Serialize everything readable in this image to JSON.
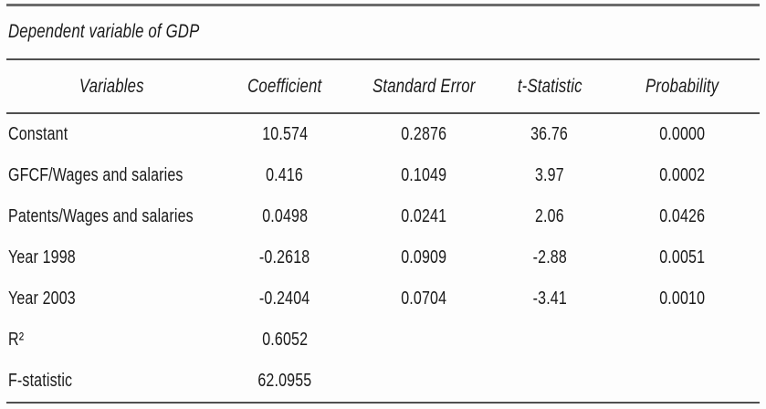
{
  "table": {
    "title": "Dependent variable of GDP",
    "columns": [
      "Variables",
      "Coefficient",
      "Standard Error",
      "t-Statistic",
      "Probability"
    ],
    "rows": [
      {
        "variable": "Constant",
        "coefficient": "10.574",
        "std_error": "0.2876",
        "t_stat": "36.76",
        "probability": "0.0000"
      },
      {
        "variable": "GFCF/Wages and salaries",
        "coefficient": "0.416",
        "std_error": "0.1049",
        "t_stat": "3.97",
        "probability": "0.0002"
      },
      {
        "variable": "Patents/Wages and salaries",
        "coefficient": "0.0498",
        "std_error": "0.0241",
        "t_stat": "2.06",
        "probability": "0.0426"
      },
      {
        "variable": "Year 1998",
        "coefficient": "-0.2618",
        "std_error": "0.0909",
        "t_stat": "-2.88",
        "probability": "0.0051"
      },
      {
        "variable": "Year 2003",
        "coefficient": "-0.2404",
        "std_error": "0.0704",
        "t_stat": "-3.41",
        "probability": "0.0010"
      },
      {
        "variable": "R²",
        "coefficient": "0.6052",
        "std_error": "",
        "t_stat": "",
        "probability": ""
      },
      {
        "variable": "F-statistic",
        "coefficient": "62.0955",
        "std_error": "",
        "t_stat": "",
        "probability": ""
      }
    ],
    "colors": {
      "text": "#1a1a1a",
      "rule": "#4f4f4f",
      "background": "#fdfdfd"
    }
  }
}
